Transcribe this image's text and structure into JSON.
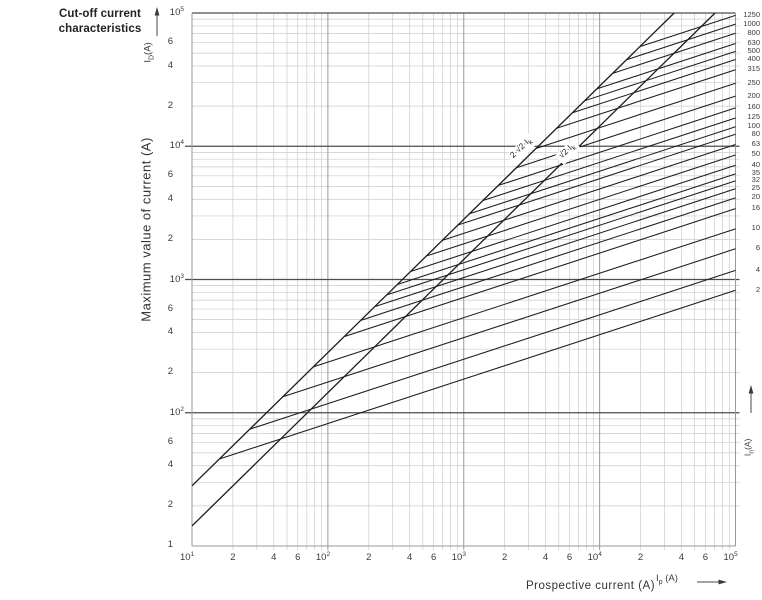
{
  "title": {
    "line1": "Cut-off current",
    "line2": "characteristics"
  },
  "axes": {
    "y_title": "Maximum value of current (A)",
    "y_symbol": {
      "base": "I",
      "sub": "D",
      "unit": "(A)"
    },
    "x_title": "Prospective current (A)",
    "x_symbol": {
      "base": "I",
      "sub": "p",
      "unit": "(A)"
    },
    "right_symbol": {
      "base": "I",
      "sub": "n",
      "unit": "(A)"
    },
    "x_decade_exponents": [
      "1",
      "2",
      "3",
      "4",
      "5"
    ],
    "x_minor_labels": [
      "2",
      "4",
      "6"
    ],
    "y_decade_exponents": [
      "5",
      "4",
      "3",
      "2"
    ],
    "y_minor_labels": [
      "6",
      "4",
      "2"
    ],
    "y_bottom_label": "1"
  },
  "colors": {
    "grid_minor": "#cccccc",
    "grid_major": "#9a9a9a",
    "grid_dark": "#4d4d4d",
    "curve": "#1c1c1c",
    "text": "#3a3a3a"
  },
  "chart_data": {
    "type": "line",
    "title": "Cut-off current characteristics",
    "xlabel": "Prospective current (A)",
    "ylabel": "Maximum value of current (A)",
    "x_range": [
      10,
      100000
    ],
    "y_range": [
      10,
      100000
    ],
    "log_x": true,
    "log_y": true,
    "grid": true,
    "reference_lines": [
      {
        "label_base": "2·√2·I",
        "label_sub": "k",
        "factor": 2.8284
      },
      {
        "label_base": "√2·I",
        "label_sub": "k",
        "factor": 1.4142
      }
    ],
    "curve_model": "each rated-current curve follows y=2.828x up to its branch point, then rises with slope 1/3 (log-log) to its cut-off value at 100 kA",
    "fuse_curves": [
      {
        "rating": "1250",
        "cutoff_a": 96000
      },
      {
        "rating": "1000",
        "cutoff_a": 82500
      },
      {
        "rating": "800",
        "cutoff_a": 70500
      },
      {
        "rating": "630",
        "cutoff_a": 59000
      },
      {
        "rating": "500",
        "cutoff_a": 51500
      },
      {
        "rating": "400",
        "cutoff_a": 44800
      },
      {
        "rating": "315",
        "cutoff_a": 37500
      },
      {
        "rating": "250",
        "cutoff_a": 29700
      },
      {
        "rating": "200",
        "cutoff_a": 23800
      },
      {
        "rating": "160",
        "cutoff_a": 19400
      },
      {
        "rating": "125",
        "cutoff_a": 16300
      },
      {
        "rating": "100",
        "cutoff_a": 14000
      },
      {
        "rating": "80",
        "cutoff_a": 12300
      },
      {
        "rating": "63",
        "cutoff_a": 10300
      },
      {
        "rating": "50",
        "cutoff_a": 8600
      },
      {
        "rating": "40",
        "cutoff_a": 7200
      },
      {
        "rating": "35",
        "cutoff_a": 6200
      },
      {
        "rating": "32",
        "cutoff_a": 5500
      },
      {
        "rating": "25",
        "cutoff_a": 4800
      },
      {
        "rating": "20",
        "cutoff_a": 4100
      },
      {
        "rating": "16",
        "cutoff_a": 3400
      },
      {
        "rating": "10",
        "cutoff_a": 2400
      },
      {
        "rating": "6",
        "cutoff_a": 1700
      },
      {
        "rating": "4",
        "cutoff_a": 1170
      },
      {
        "rating": "2",
        "cutoff_a": 830
      }
    ]
  }
}
